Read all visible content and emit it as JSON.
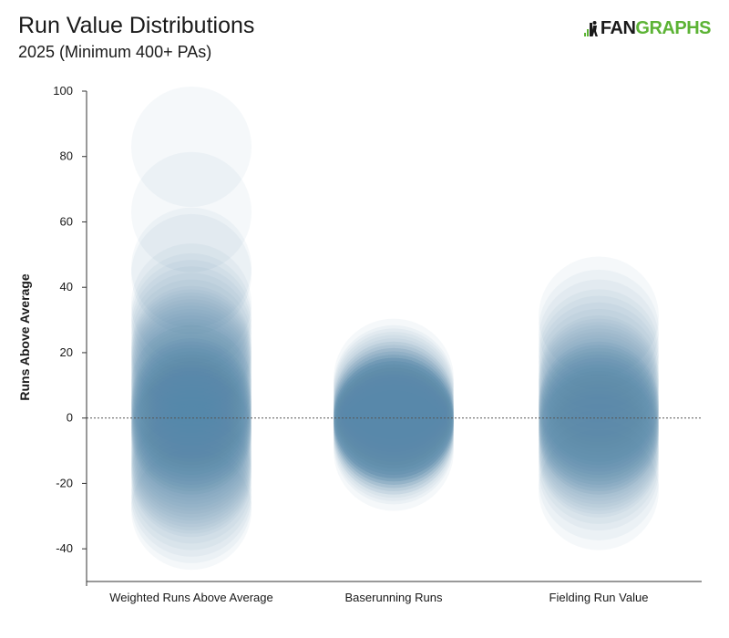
{
  "chart_data": {
    "type": "scatter",
    "title": "Run Value Distributions",
    "subtitle": "2025 (Minimum 400+ PAs)",
    "ylabel": "Runs Above Average",
    "xlabel": "",
    "ylim": [
      -50,
      100
    ],
    "yticks": [
      100,
      80,
      60,
      40,
      20,
      0,
      -20,
      -40
    ],
    "reference_line_y": 0,
    "categories": [
      "Weighted Runs Above Average",
      "Baserunning Runs",
      "Fielding Run Value"
    ],
    "point_color": "#5b80ad",
    "series": [
      {
        "name": "Weighted Runs Above Average",
        "values": [
          83,
          63,
          46,
          44,
          35,
          32,
          30,
          28,
          26,
          24,
          22,
          21,
          20,
          19,
          18,
          17,
          16,
          15,
          14,
          13,
          12,
          11,
          10,
          10,
          9,
          8,
          7,
          6,
          6,
          5,
          5,
          4,
          4,
          3,
          3,
          2,
          2,
          1,
          1,
          0,
          0,
          -1,
          -1,
          -2,
          -2,
          -3,
          -3,
          -4,
          -4,
          -5,
          -5,
          -6,
          -7,
          -8,
          -9,
          -10,
          -11,
          -12,
          -13,
          -14,
          -15,
          -16,
          -17,
          -18,
          -20,
          -22,
          -24,
          -26,
          -28
        ]
      },
      {
        "name": "Baserunning Runs",
        "values": [
          12,
          10,
          9,
          8,
          7,
          6,
          5,
          5,
          4,
          4,
          3,
          3,
          3,
          2,
          2,
          2,
          1,
          1,
          1,
          1,
          0,
          0,
          0,
          0,
          0,
          0,
          -1,
          -1,
          -1,
          -1,
          -1,
          -2,
          -2,
          -2,
          -2,
          -3,
          -3,
          -3,
          -4,
          -4,
          -5,
          -5,
          -6,
          -7,
          -8,
          -10
        ]
      },
      {
        "name": "Fielding Run Value",
        "values": [
          31,
          27,
          24,
          21,
          19,
          17,
          15,
          13,
          12,
          11,
          10,
          9,
          8,
          7,
          6,
          5,
          5,
          4,
          4,
          3,
          3,
          2,
          2,
          1,
          1,
          0,
          0,
          -1,
          -1,
          -2,
          -2,
          -3,
          -3,
          -4,
          -4,
          -5,
          -5,
          -6,
          -7,
          -8,
          -9,
          -10,
          -11,
          -12,
          -14,
          -16,
          -19,
          -22
        ]
      }
    ]
  },
  "logo": {
    "fan": "FAN",
    "graphs": "GRAPHS"
  }
}
